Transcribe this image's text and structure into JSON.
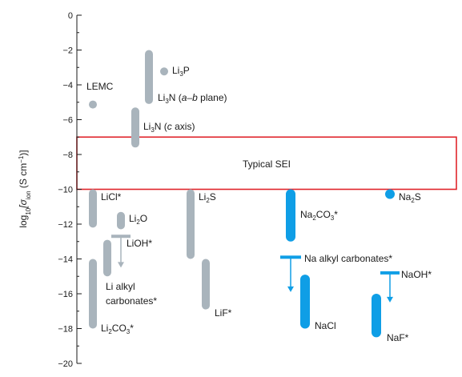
{
  "chart_data": {
    "type": "range-bar",
    "ylabel_parts": [
      "log",
      "10",
      "[σ",
      "ion",
      " (S cm",
      "−1",
      ")]"
    ],
    "ylim": [
      -20,
      0
    ],
    "yticks": [
      0,
      -2,
      -4,
      -6,
      -8,
      -10,
      -12,
      -14,
      -16,
      -18,
      -20
    ],
    "ytick_labels": [
      "0",
      "−2",
      "−4",
      "−6",
      "−8",
      "−10",
      "−12",
      "−14",
      "−16",
      "−18",
      "−20"
    ],
    "band": {
      "label": "Typical SEI",
      "low": -10,
      "high": -7,
      "color": "#e0242b"
    },
    "colors": {
      "lithium": "#a9b4bc",
      "sodium": "#0f9ee6",
      "axis": "#1a1a1a"
    },
    "series": [
      {
        "name": "LEMC",
        "group": "lithium",
        "low": -5.1,
        "high": -4.9,
        "label": [
          "LEMC"
        ]
      },
      {
        "name": "Li3P",
        "group": "lithium",
        "low": -3.3,
        "high": -3.0,
        "label": [
          "Li",
          "3",
          "P"
        ]
      },
      {
        "name": "Li3N (a–b plane)",
        "group": "lithium",
        "low": -5.1,
        "high": -2.0,
        "label": [
          "Li",
          "3",
          "N (",
          "a–b",
          " plane)"
        ]
      },
      {
        "name": "Li3N (c axis)",
        "group": "lithium",
        "low": -7.6,
        "high": -5.3,
        "label": [
          "Li",
          "3",
          "N (",
          "c",
          " axis)"
        ]
      },
      {
        "name": "LiCl*",
        "group": "lithium",
        "low": -12.2,
        "high": -10.0,
        "label": [
          "LiCl*"
        ]
      },
      {
        "name": "Li2O",
        "group": "lithium",
        "low": -12.3,
        "high": -11.3,
        "label": [
          "Li",
          "2",
          "O"
        ]
      },
      {
        "name": "LiOH*",
        "group": "lithium",
        "arrow_from": -12.7,
        "arrow_to": -14.5,
        "label": [
          "LiOH*"
        ]
      },
      {
        "name": "Li alkyl carbonates*",
        "group": "lithium",
        "low": -15.0,
        "high": -12.9,
        "label": [
          "Li alkyl",
          "carbonates*"
        ]
      },
      {
        "name": "Li2CO3*",
        "group": "lithium",
        "low": -18.0,
        "high": -14.0,
        "label": [
          "Li",
          "2",
          "CO",
          "3",
          "*"
        ]
      },
      {
        "name": "Li2S",
        "group": "lithium",
        "low": -14.0,
        "high": -10.0,
        "label": [
          "Li",
          "2",
          "S"
        ]
      },
      {
        "name": "LiF*",
        "group": "lithium",
        "low": -16.9,
        "high": -14.0,
        "label": [
          "LiF*"
        ]
      },
      {
        "name": "Na2CO3*",
        "group": "sodium",
        "low": -13.0,
        "high": -10.0,
        "label": [
          "Na",
          "2",
          "CO",
          "3",
          "*"
        ]
      },
      {
        "name": "Na alkyl carbonates*",
        "group": "sodium",
        "arrow_from": -13.9,
        "arrow_to": -15.9,
        "label": [
          "Na alkyl carbonates*"
        ]
      },
      {
        "name": "NaCl",
        "group": "sodium",
        "low": -18.0,
        "high": -14.9,
        "label": [
          "NaCl"
        ]
      },
      {
        "name": "Na2S",
        "group": "sodium",
        "low": -10.3,
        "high": -10.0,
        "label": [
          "Na",
          "2",
          "S"
        ]
      },
      {
        "name": "NaOH*",
        "group": "sodium",
        "arrow_from": -14.8,
        "arrow_to": -16.5,
        "label": [
          "NaOH*"
        ]
      },
      {
        "name": "NaF*",
        "group": "sodium",
        "low": -18.5,
        "high": -16.0,
        "label": [
          "NaF*"
        ]
      }
    ]
  }
}
